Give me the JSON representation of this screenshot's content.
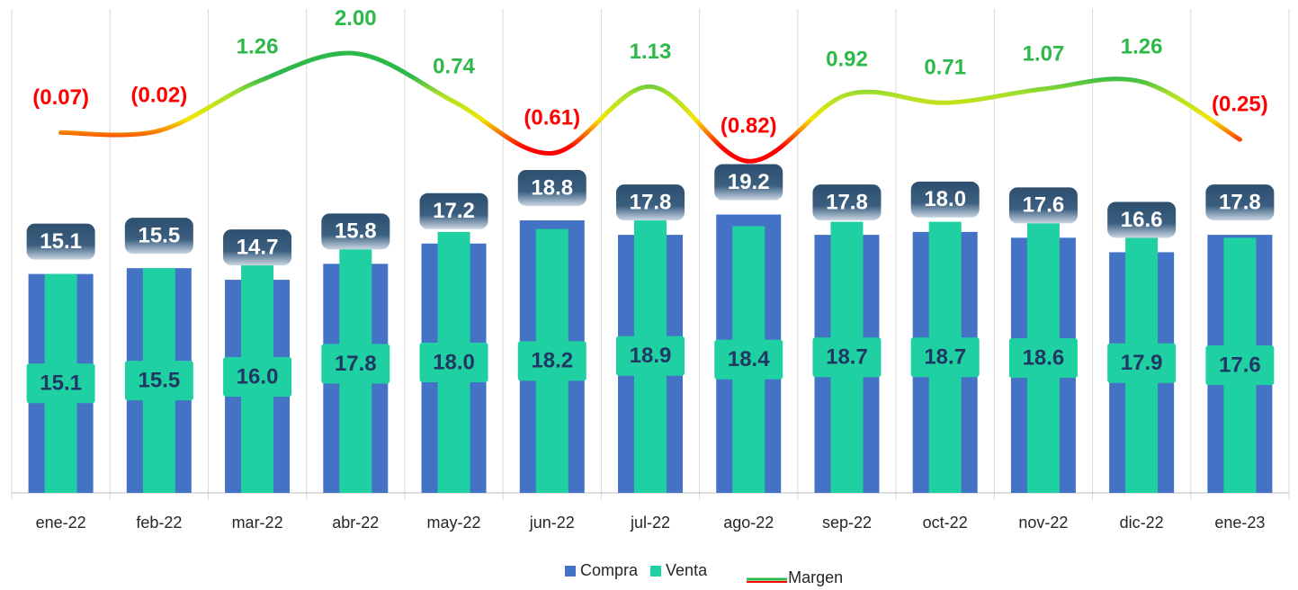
{
  "chart_data": {
    "type": "bar",
    "categories": [
      "ene-22",
      "feb-22",
      "mar-22",
      "abr-22",
      "may-22",
      "jun-22",
      "jul-22",
      "ago-22",
      "sep-22",
      "oct-22",
      "nov-22",
      "dic-22",
      "ene-23"
    ],
    "series": [
      {
        "name": "Compra",
        "color": "#4472c4",
        "values": [
          15.1,
          15.5,
          14.7,
          15.8,
          17.2,
          18.8,
          17.8,
          19.2,
          17.8,
          18.0,
          17.6,
          16.6,
          17.8
        ],
        "value_labels": [
          "15.1",
          "15.5",
          "14.7",
          "15.8",
          "17.2",
          "18.8",
          "17.8",
          "19.2",
          "17.8",
          "18.0",
          "17.6",
          "16.6",
          "17.8"
        ]
      },
      {
        "name": "Venta",
        "color": "#1fd1a2",
        "values": [
          15.1,
          15.5,
          16.0,
          17.8,
          18.0,
          18.2,
          18.9,
          18.4,
          18.7,
          18.7,
          18.6,
          17.9,
          17.6
        ],
        "value_labels": [
          "15.1",
          "15.5",
          "16.0",
          "17.8",
          "18.0",
          "18.2",
          "18.9",
          "18.4",
          "18.7",
          "18.7",
          "18.6",
          "17.9",
          "17.6"
        ]
      },
      {
        "name": "Margen",
        "type": "line",
        "axis": "y2",
        "color": "#2db84a",
        "negative_color": "#ff0000",
        "values": [
          -0.07,
          -0.02,
          1.26,
          2.0,
          0.74,
          -0.61,
          1.13,
          -0.82,
          0.92,
          0.71,
          1.07,
          1.26,
          -0.25
        ],
        "value_labels": [
          "(0.07)",
          "(0.02)",
          "1.26",
          "2.00",
          "0.74",
          "(0.61)",
          "1.13",
          "(0.82)",
          "0.92",
          "0.71",
          "1.07",
          "1.26",
          "(0.25)"
        ]
      }
    ],
    "ylim": [
      0,
      34
    ],
    "y2lim": [
      -9.5,
      3.4
    ],
    "legend": "bottom"
  }
}
